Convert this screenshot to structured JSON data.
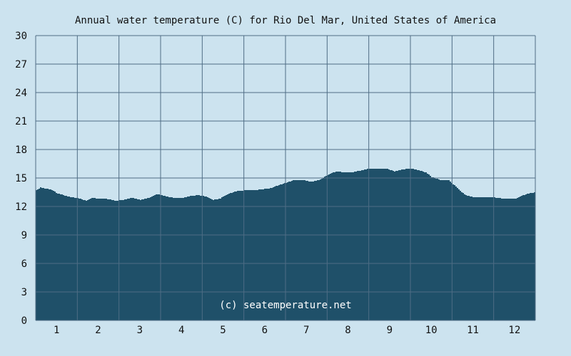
{
  "colors": {
    "background": "#cce3ef",
    "plot_background": "#cce3ef",
    "area_fill": "#1f5069",
    "grid": "#4f6d85"
  },
  "chart_data": {
    "type": "area",
    "title": "Annual water temperature (C) for Rio Del Mar, United States of America",
    "xlabel": "",
    "ylabel": "",
    "watermark": "(c) seatemperature.net",
    "x_ticks": [
      "1",
      "2",
      "3",
      "4",
      "5",
      "6",
      "7",
      "8",
      "9",
      "10",
      "11",
      "12"
    ],
    "y_ticks": [
      "0",
      "3",
      "6",
      "9",
      "12",
      "15",
      "18",
      "21",
      "24",
      "27",
      "30"
    ],
    "xlim": [
      0.5,
      12.5
    ],
    "ylim": [
      0,
      30
    ],
    "grid": true,
    "series": [
      {
        "x": [
          0.5,
          0.6,
          0.7,
          0.85,
          1.0,
          1.15,
          1.3,
          1.5,
          1.7,
          1.85,
          2.0,
          2.2,
          2.4,
          2.6,
          2.8,
          3.0,
          3.2,
          3.4,
          3.6,
          3.8,
          4.0,
          4.2,
          4.4,
          4.6,
          4.75,
          4.9,
          5.1,
          5.3,
          5.5,
          5.7,
          5.9,
          6.1,
          6.3,
          6.5,
          6.7,
          6.9,
          7.1,
          7.3,
          7.5,
          7.7,
          7.9,
          8.1,
          8.3,
          8.5,
          8.7,
          8.9,
          9.1,
          9.3,
          9.5,
          9.7,
          9.85,
          10.0,
          10.2,
          10.4,
          10.6,
          10.8,
          11.0,
          11.2,
          11.4,
          11.6,
          11.8,
          12.0,
          12.2,
          12.35,
          12.5
        ],
        "values": [
          13.7,
          14.0,
          13.9,
          13.8,
          13.4,
          13.2,
          13.0,
          12.9,
          12.6,
          12.9,
          12.8,
          12.8,
          12.6,
          12.7,
          12.9,
          12.7,
          12.9,
          13.3,
          13.1,
          12.9,
          12.9,
          13.1,
          13.2,
          13.0,
          12.7,
          12.8,
          13.3,
          13.6,
          13.7,
          13.7,
          13.8,
          13.9,
          14.2,
          14.5,
          14.8,
          14.8,
          14.6,
          14.8,
          15.3,
          15.7,
          15.6,
          15.6,
          15.8,
          16.0,
          16.0,
          16.0,
          15.7,
          15.9,
          16.0,
          15.8,
          15.6,
          15.1,
          14.8,
          14.8,
          14.0,
          13.2,
          13.0,
          13.0,
          13.0,
          12.9,
          12.8,
          12.8,
          13.2,
          13.4,
          13.5
        ]
      }
    ]
  }
}
